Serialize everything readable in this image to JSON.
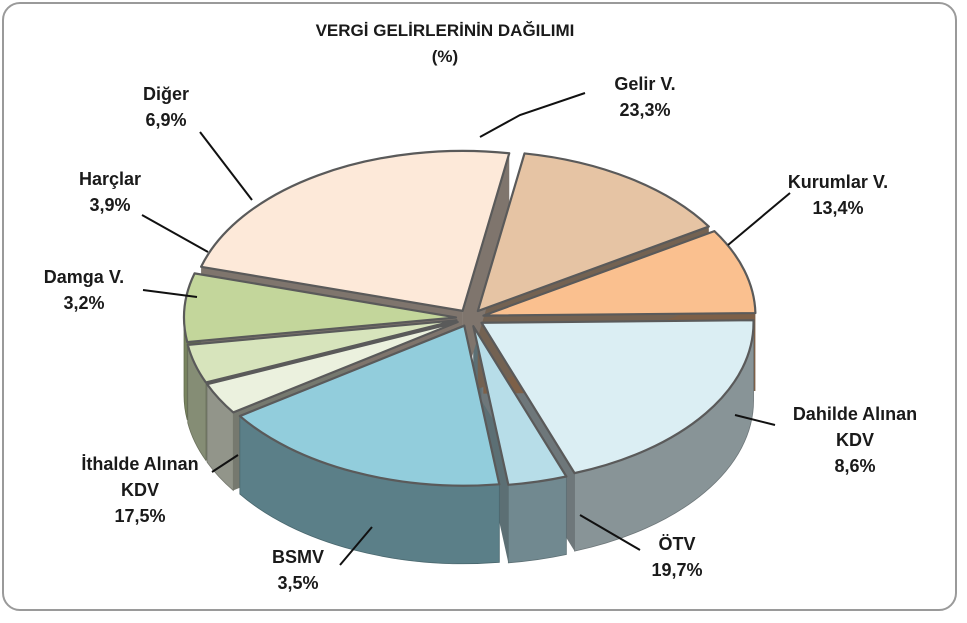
{
  "chart_data": {
    "type": "pie",
    "title": "VERGİ GELİRLERİNİN DAĞILIMI",
    "subtitle": "(%)",
    "slices": [
      {
        "label": "Gelir V.",
        "value": 23.3,
        "value_label": "23,3%",
        "color": "#fde9d9"
      },
      {
        "label": "Kurumlar V.",
        "value": 13.4,
        "value_label": "13,4%",
        "color": "#e6c4a4"
      },
      {
        "label": "Dahilde Alınan KDV",
        "value": 8.6,
        "value_label": "8,6%",
        "color": "#fac08f"
      },
      {
        "label": "ÖTV",
        "value": 19.7,
        "value_label": "19,7%",
        "color": "#dbeef3"
      },
      {
        "label": "BSMV",
        "value": 3.5,
        "value_label": "3,5%",
        "color": "#b7dde8"
      },
      {
        "label": "İthalde Alınan KDV",
        "value": 17.5,
        "value_label": "17,5%",
        "color": "#92cddc"
      },
      {
        "label": "Damga V.",
        "value": 3.2,
        "value_label": "3,2%",
        "color": "#ebf1de"
      },
      {
        "label": "Harçlar",
        "value": 3.9,
        "value_label": "3,9%",
        "color": "#d7e4bc"
      },
      {
        "label": "Diğer",
        "value": 6.9,
        "value_label": "6,9%",
        "color": "#c3d69b"
      }
    ]
  }
}
